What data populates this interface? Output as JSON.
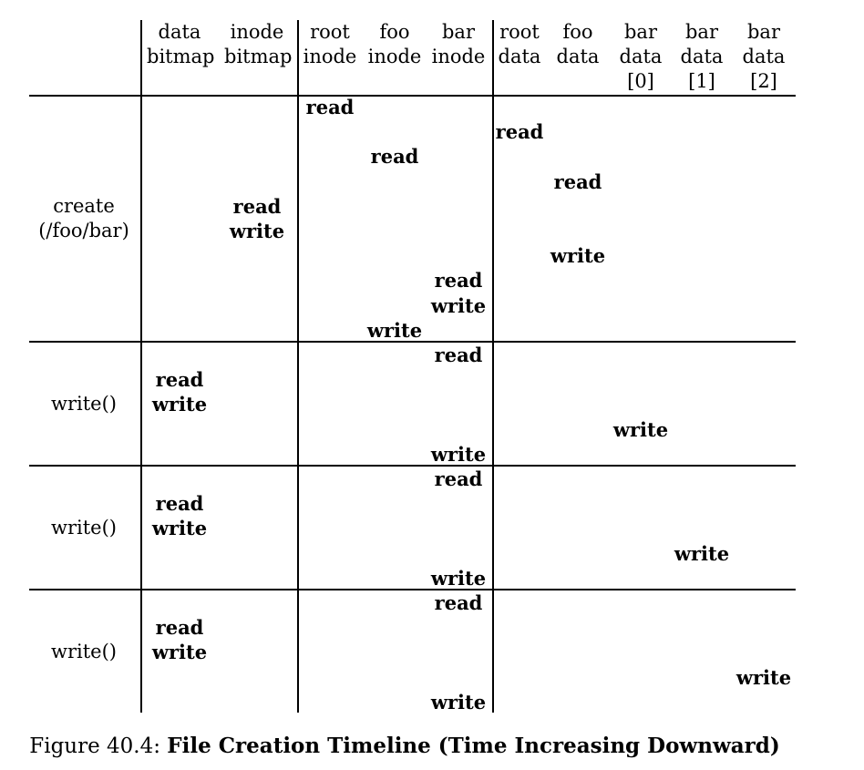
{
  "columns": [
    {
      "lines": [
        "data",
        "bitmap"
      ]
    },
    {
      "lines": [
        "inode",
        "bitmap"
      ]
    },
    {
      "lines": [
        "root",
        "inode"
      ]
    },
    {
      "lines": [
        "foo",
        "inode"
      ]
    },
    {
      "lines": [
        "bar",
        "inode"
      ]
    },
    {
      "lines": [
        "root",
        "data"
      ]
    },
    {
      "lines": [
        "foo",
        "data"
      ]
    },
    {
      "lines": [
        "bar",
        "data",
        "[0]"
      ]
    },
    {
      "lines": [
        "bar",
        "data",
        "[1]"
      ]
    },
    {
      "lines": [
        "bar",
        "data",
        "[2]"
      ]
    }
  ],
  "groups": [
    {
      "label_lines": [
        "create",
        "(/foo/bar)"
      ],
      "events": [
        {
          "col": 2,
          "op": "read"
        },
        {
          "col": 5,
          "op": "read"
        },
        {
          "col": 3,
          "op": "read"
        },
        {
          "col": 6,
          "op": "read"
        },
        {
          "col": 1,
          "op": "read"
        },
        {
          "col": 1,
          "op": "write"
        },
        {
          "col": 6,
          "op": "write"
        },
        {
          "col": 4,
          "op": "read"
        },
        {
          "col": 4,
          "op": "write"
        },
        {
          "col": 3,
          "op": "write"
        }
      ]
    },
    {
      "label_lines": [
        "write()"
      ],
      "events": [
        {
          "col": 4,
          "op": "read"
        },
        {
          "col": 0,
          "op": "read"
        },
        {
          "col": 0,
          "op": "write"
        },
        {
          "col": 7,
          "op": "write"
        },
        {
          "col": 4,
          "op": "write"
        }
      ]
    },
    {
      "label_lines": [
        "write()"
      ],
      "events": [
        {
          "col": 4,
          "op": "read"
        },
        {
          "col": 0,
          "op": "read"
        },
        {
          "col": 0,
          "op": "write"
        },
        {
          "col": 8,
          "op": "write"
        },
        {
          "col": 4,
          "op": "write"
        }
      ]
    },
    {
      "label_lines": [
        "write()"
      ],
      "events": [
        {
          "col": 4,
          "op": "read"
        },
        {
          "col": 0,
          "op": "read"
        },
        {
          "col": 0,
          "op": "write"
        },
        {
          "col": 9,
          "op": "write"
        },
        {
          "col": 4,
          "op": "write"
        }
      ]
    }
  ],
  "caption": {
    "prefix": "Figure 40.4: ",
    "title": "File Creation Timeline (Time Increasing Downward)"
  }
}
